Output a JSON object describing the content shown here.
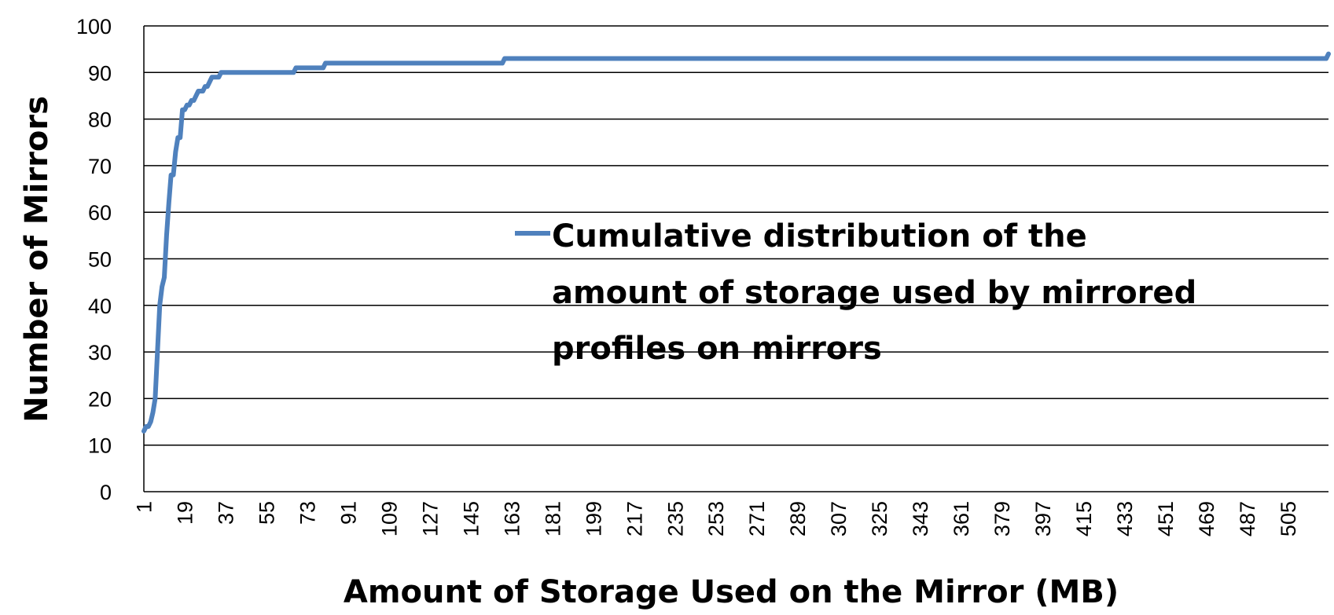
{
  "chart_data": {
    "type": "line",
    "title": "",
    "xlabel": "Amount of Storage Used on the Mirror (MB)",
    "ylabel": "Number of Mirrors",
    "ylim": [
      0,
      100
    ],
    "xlim": [
      1,
      523
    ],
    "y_ticks": [
      0,
      10,
      20,
      30,
      40,
      50,
      60,
      70,
      80,
      90,
      100
    ],
    "x_ticks": [
      1,
      19,
      37,
      55,
      73,
      91,
      109,
      127,
      145,
      163,
      181,
      199,
      217,
      235,
      253,
      271,
      289,
      307,
      325,
      343,
      361,
      379,
      397,
      415,
      433,
      451,
      469,
      487,
      505
    ],
    "grid": "horizontal",
    "legend_position": "center-right",
    "colors": {
      "series": "#4f81bd",
      "grid": "#000000",
      "axis": "#000000"
    },
    "series": [
      {
        "name": "Cumulative distribution of the amount of storage used by mirrored profiles on mirrors",
        "legend_lines": [
          "Cumulative distribution of the",
          "amount of storage used by mirrored",
          "profiles on mirrors"
        ],
        "x": [
          1,
          2,
          3,
          4,
          5,
          6,
          7,
          8,
          9,
          10,
          11,
          12,
          13,
          14,
          15,
          16,
          17,
          18,
          19,
          20,
          21,
          22,
          23,
          24,
          25,
          26,
          27,
          28,
          29,
          30,
          31,
          32,
          33,
          34,
          35,
          36,
          37,
          38,
          39,
          40,
          41,
          42,
          43,
          44,
          50,
          60,
          67,
          68,
          80,
          81,
          150,
          159,
          160,
          520,
          522,
          523
        ],
        "y": [
          13,
          14,
          14,
          15,
          17,
          20,
          30,
          40,
          44,
          46,
          55,
          62,
          68,
          68,
          73,
          76,
          76,
          82,
          82,
          83,
          83,
          84,
          84,
          85,
          86,
          86,
          86,
          87,
          87,
          88,
          89,
          89,
          89,
          89,
          90,
          90,
          90,
          90,
          90,
          90,
          90,
          90,
          90,
          90,
          90,
          90,
          90,
          91,
          91,
          92,
          92,
          92,
          93,
          93,
          93,
          94
        ]
      }
    ]
  }
}
